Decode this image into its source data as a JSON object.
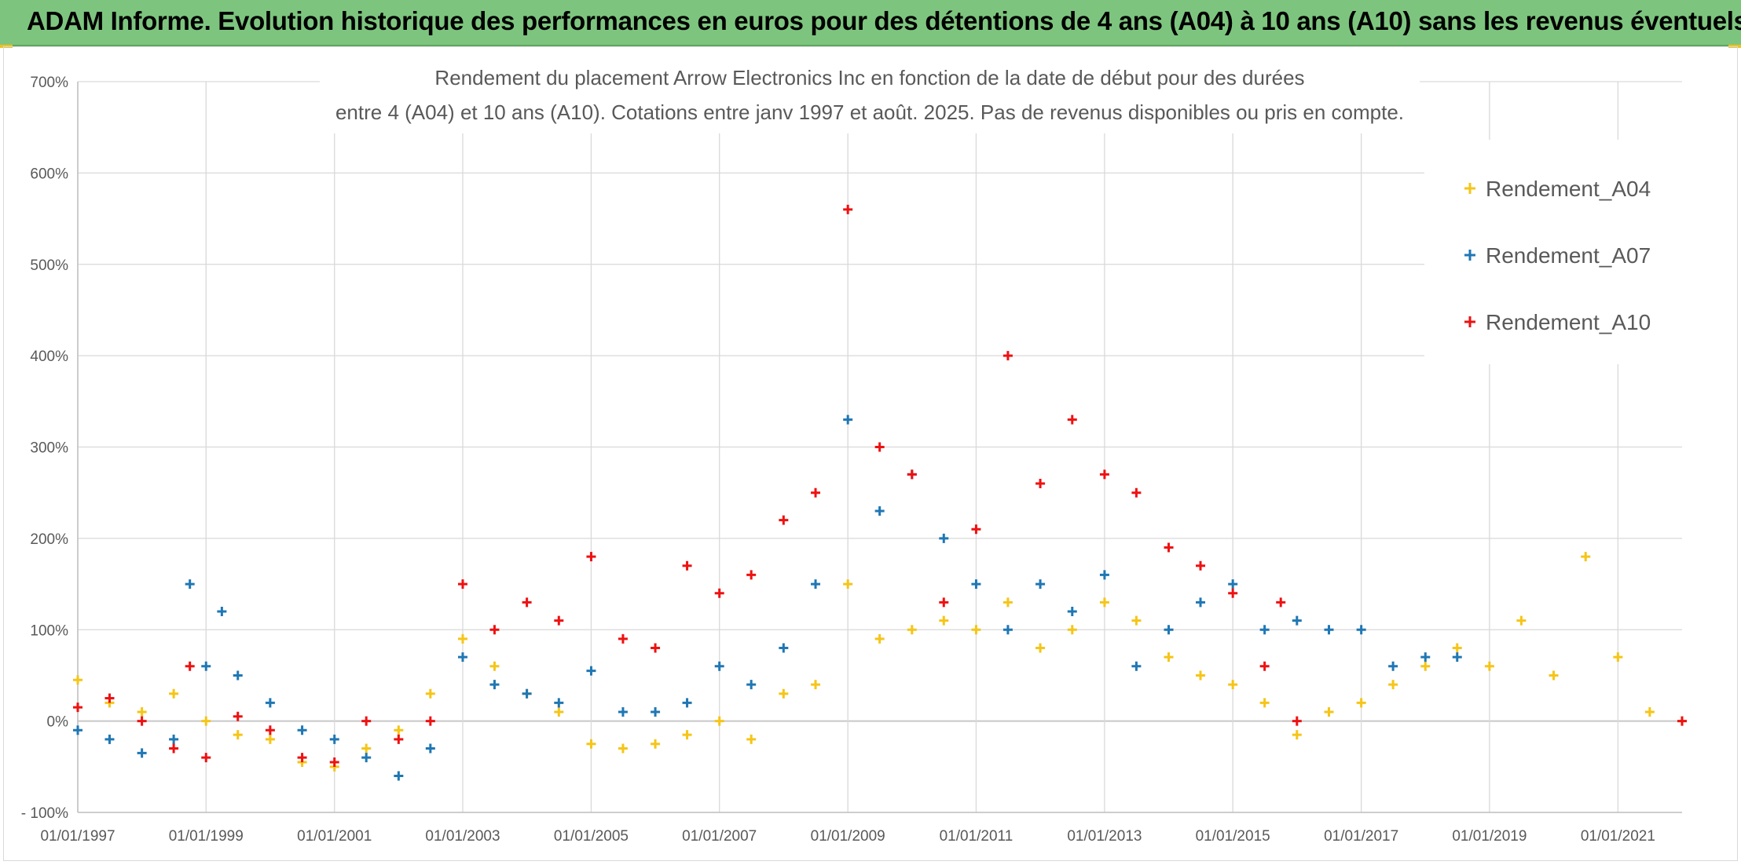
{
  "banner": {
    "title": "ADAM Informe. Evolution historique des performances en euros pour des détentions de 4 ans (A04) à 10 ans (A10) sans les revenus éventuels"
  },
  "colors": {
    "banner_bg": "#7dc57e",
    "A04": "#f5c518",
    "A07": "#1f77b4",
    "A10": "#ee1111",
    "grid": "#d9d9d9",
    "text": "#595959"
  },
  "chart_data": {
    "type": "scatter",
    "title_lines": [
      "Rendement du placement Arrow Electronics Inc en fonction de la date de début pour des durées",
      "entre 4 (A04) et 10 ans (A10). Cotations entre janv 1997 et août. 2025. Pas de revenus disponibles ou pris en compte."
    ],
    "xlabel": "",
    "ylabel": "",
    "x_range": [
      "1997-01-01",
      "2022-01-01"
    ],
    "y_range": [
      -100,
      700
    ],
    "y_ticks": [
      -100,
      0,
      100,
      200,
      300,
      400,
      500,
      600,
      700
    ],
    "y_tick_labels": [
      "- 100%",
      "0%",
      "100%",
      "200%",
      "300%",
      "400%",
      "500%",
      "600%",
      "700%"
    ],
    "x_tick_labels": [
      "01/01/1997",
      "01/01/1999",
      "01/01/2001",
      "01/01/2003",
      "01/01/2005",
      "01/01/2007",
      "01/01/2009",
      "01/01/2011",
      "01/01/2013",
      "01/01/2015",
      "01/01/2017",
      "01/01/2019",
      "01/01/2021"
    ],
    "grid": "both",
    "marker": "+",
    "legend_position": "top-right",
    "series": [
      {
        "name": "Rendement_A04",
        "color": "#f5c518",
        "points": [
          [
            "1997-01-01",
            45
          ],
          [
            "1997-07-01",
            20
          ],
          [
            "1998-01-01",
            10
          ],
          [
            "1998-07-01",
            30
          ],
          [
            "1999-01-01",
            0
          ],
          [
            "1999-07-01",
            -15
          ],
          [
            "2000-01-01",
            -20
          ],
          [
            "2000-07-01",
            -45
          ],
          [
            "2001-01-01",
            -50
          ],
          [
            "2001-07-01",
            -30
          ],
          [
            "2002-01-01",
            -10
          ],
          [
            "2002-07-01",
            30
          ],
          [
            "2003-01-01",
            90
          ],
          [
            "2003-07-01",
            60
          ],
          [
            "2004-01-01",
            30
          ],
          [
            "2004-07-01",
            10
          ],
          [
            "2005-01-01",
            -25
          ],
          [
            "2005-07-01",
            -30
          ],
          [
            "2006-01-01",
            -25
          ],
          [
            "2006-07-01",
            -15
          ],
          [
            "2007-01-01",
            0
          ],
          [
            "2007-07-01",
            -20
          ],
          [
            "2008-01-01",
            30
          ],
          [
            "2008-07-01",
            40
          ],
          [
            "2009-01-01",
            150
          ],
          [
            "2009-07-01",
            90
          ],
          [
            "2010-01-01",
            100
          ],
          [
            "2010-07-01",
            110
          ],
          [
            "2011-01-01",
            100
          ],
          [
            "2011-07-01",
            130
          ],
          [
            "2012-01-01",
            80
          ],
          [
            "2012-07-01",
            100
          ],
          [
            "2013-01-01",
            130
          ],
          [
            "2013-07-01",
            110
          ],
          [
            "2014-01-01",
            70
          ],
          [
            "2014-07-01",
            50
          ],
          [
            "2015-01-01",
            40
          ],
          [
            "2015-07-01",
            20
          ],
          [
            "2016-01-01",
            -15
          ],
          [
            "2016-07-01",
            10
          ],
          [
            "2017-01-01",
            20
          ],
          [
            "2017-07-01",
            40
          ],
          [
            "2018-01-01",
            60
          ],
          [
            "2018-07-01",
            80
          ],
          [
            "2019-01-01",
            60
          ],
          [
            "2019-07-01",
            110
          ],
          [
            "2020-01-01",
            50
          ],
          [
            "2020-07-01",
            180
          ],
          [
            "2021-01-01",
            70
          ],
          [
            "2021-07-01",
            10
          ],
          [
            "2022-01-01",
            0
          ]
        ]
      },
      {
        "name": "Rendement_A07",
        "color": "#1f77b4",
        "points": [
          [
            "1997-01-01",
            -10
          ],
          [
            "1997-07-01",
            -20
          ],
          [
            "1998-01-01",
            -35
          ],
          [
            "1998-07-01",
            -20
          ],
          [
            "1998-10-01",
            150
          ],
          [
            "1999-01-01",
            60
          ],
          [
            "1999-04-01",
            120
          ],
          [
            "1999-07-01",
            50
          ],
          [
            "2000-01-01",
            20
          ],
          [
            "2000-07-01",
            -10
          ],
          [
            "2001-01-01",
            -20
          ],
          [
            "2001-07-01",
            -40
          ],
          [
            "2002-01-01",
            -60
          ],
          [
            "2002-07-01",
            -30
          ],
          [
            "2003-01-01",
            70
          ],
          [
            "2003-07-01",
            40
          ],
          [
            "2004-01-01",
            30
          ],
          [
            "2004-07-01",
            20
          ],
          [
            "2005-01-01",
            55
          ],
          [
            "2005-07-01",
            10
          ],
          [
            "2006-01-01",
            10
          ],
          [
            "2006-07-01",
            20
          ],
          [
            "2007-01-01",
            60
          ],
          [
            "2007-07-01",
            40
          ],
          [
            "2008-01-01",
            80
          ],
          [
            "2008-07-01",
            150
          ],
          [
            "2009-01-01",
            330
          ],
          [
            "2009-07-01",
            230
          ],
          [
            "2010-01-01",
            270
          ],
          [
            "2010-07-01",
            200
          ],
          [
            "2011-01-01",
            150
          ],
          [
            "2011-07-01",
            100
          ],
          [
            "2012-01-01",
            150
          ],
          [
            "2012-07-01",
            120
          ],
          [
            "2013-01-01",
            160
          ],
          [
            "2013-07-01",
            60
          ],
          [
            "2014-01-01",
            100
          ],
          [
            "2014-07-01",
            130
          ],
          [
            "2015-01-01",
            150
          ],
          [
            "2015-07-01",
            100
          ],
          [
            "2016-01-01",
            110
          ],
          [
            "2016-07-01",
            100
          ],
          [
            "2017-01-01",
            100
          ],
          [
            "2017-07-01",
            60
          ],
          [
            "2018-01-01",
            70
          ],
          [
            "2018-07-01",
            70
          ]
        ]
      },
      {
        "name": "Rendement_A10",
        "color": "#ee1111",
        "points": [
          [
            "1997-01-01",
            15
          ],
          [
            "1997-07-01",
            25
          ],
          [
            "1998-01-01",
            0
          ],
          [
            "1998-07-01",
            -30
          ],
          [
            "1998-10-01",
            60
          ],
          [
            "1999-01-01",
            -40
          ],
          [
            "1999-07-01",
            5
          ],
          [
            "2000-01-01",
            -10
          ],
          [
            "2000-07-01",
            -40
          ],
          [
            "2001-01-01",
            -45
          ],
          [
            "2001-07-01",
            0
          ],
          [
            "2002-01-01",
            -20
          ],
          [
            "2002-07-01",
            0
          ],
          [
            "2003-01-01",
            150
          ],
          [
            "2003-07-01",
            100
          ],
          [
            "2004-01-01",
            130
          ],
          [
            "2004-07-01",
            110
          ],
          [
            "2005-01-01",
            180
          ],
          [
            "2005-07-01",
            90
          ],
          [
            "2006-01-01",
            80
          ],
          [
            "2006-07-01",
            170
          ],
          [
            "2007-01-01",
            140
          ],
          [
            "2007-07-01",
            160
          ],
          [
            "2008-01-01",
            220
          ],
          [
            "2008-07-01",
            250
          ],
          [
            "2009-01-01",
            560
          ],
          [
            "2009-07-01",
            300
          ],
          [
            "2010-01-01",
            270
          ],
          [
            "2010-07-01",
            130
          ],
          [
            "2011-01-01",
            210
          ],
          [
            "2011-07-01",
            400
          ],
          [
            "2012-01-01",
            260
          ],
          [
            "2012-07-01",
            330
          ],
          [
            "2013-01-01",
            270
          ],
          [
            "2013-07-01",
            250
          ],
          [
            "2014-01-01",
            190
          ],
          [
            "2014-07-01",
            170
          ],
          [
            "2015-01-01",
            140
          ],
          [
            "2015-07-01",
            60
          ],
          [
            "2015-10-01",
            130
          ],
          [
            "2016-01-01",
            0
          ],
          [
            "2022-01-01",
            0
          ]
        ]
      }
    ]
  }
}
